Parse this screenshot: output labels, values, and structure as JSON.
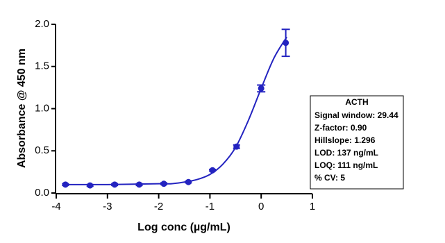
{
  "chart_data": {
    "type": "scatter",
    "x_label": "Log conc (µg/mL)",
    "y_label": "Absorbance @ 450 nm",
    "x": [
      -3.82,
      -3.34,
      -2.86,
      -2.38,
      -1.9,
      -1.42,
      -0.95,
      -0.48,
      0.0,
      0.48
    ],
    "values": [
      0.1,
      0.09,
      0.1,
      0.1,
      0.11,
      0.13,
      0.27,
      0.55,
      1.24,
      1.78
    ],
    "errors": [
      0.01,
      0.01,
      0.01,
      0.01,
      0.01,
      0.01,
      0.01,
      0.02,
      0.04,
      0.16
    ],
    "color": "#2323c0",
    "fit": {
      "x": [
        -3.82,
        -3,
        -2,
        -1.75,
        -1.5,
        -1.25,
        -1,
        -0.75,
        -0.5,
        -0.25,
        0,
        0.25,
        0.5
      ],
      "values": [
        0.1,
        0.1,
        0.11,
        0.11,
        0.13,
        0.16,
        0.22,
        0.34,
        0.54,
        0.86,
        1.24,
        1.6,
        1.85
      ]
    },
    "xlim": [
      -4,
      1
    ],
    "xticks": [
      -4,
      -3,
      -2,
      -1,
      0,
      1
    ],
    "ylim": [
      0,
      2
    ],
    "yticks": [
      {
        "value": 0,
        "label": "0.0"
      },
      0.5,
      {
        "value": 1,
        "label": "1.0"
      },
      1.5,
      {
        "value": 2,
        "label": "2.0"
      }
    ],
    "annotation": {
      "title": "ACTH",
      "lines": [
        "Signal window: 29.44",
        "Z-factor: 0.90",
        "Hillslope: 1.296",
        "LOD: 137 ng/mL",
        "LOQ: 111 ng/mL",
        "% CV: 5"
      ]
    }
  }
}
